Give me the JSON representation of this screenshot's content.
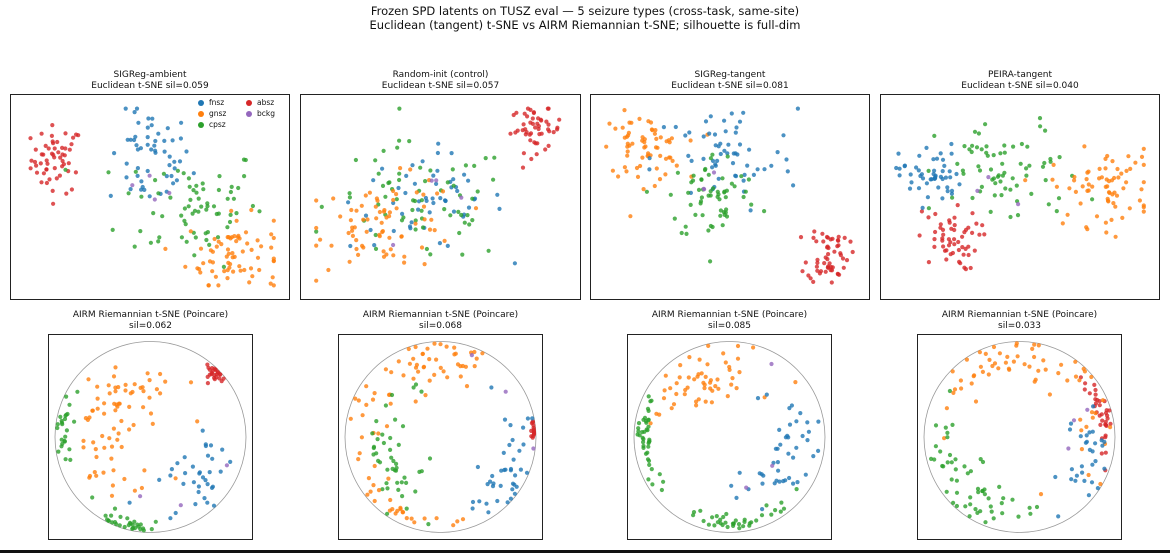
{
  "figure": {
    "suptitle_line1": "Frozen SPD latents on TUSZ eval — 5 seizure types (cross-task, same-site)",
    "suptitle_line2": "Euclidean (tangent) t-SNE vs AIRM Riemannian t-SNE; silhouette is full-dim"
  },
  "colors": {
    "fnsz": "#1f77b4",
    "gnsz": "#ff7f0e",
    "cpsz": "#2ca02c",
    "absz": "#d62728",
    "bckg": "#9467bd"
  },
  "legend": [
    {
      "label": "fnsz",
      "color": "#1f77b4"
    },
    {
      "label": "absz",
      "color": "#d62728"
    },
    {
      "label": "gnsz",
      "color": "#ff7f0e"
    },
    {
      "label": "bckg",
      "color": "#9467bd"
    },
    {
      "label": "cpsz",
      "color": "#2ca02c"
    }
  ],
  "chart_data": [
    {
      "type": "scatter",
      "projection": "Euclidean t-SNE",
      "title": "SIGReg-ambient",
      "subtitle": "Euclidean t-SNE  sil=0.059",
      "silhouette": 0.059,
      "axes": "hidden",
      "legend_position": "upper-right",
      "clusters": [
        {
          "label": "absz",
          "cx": 0.14,
          "cy": 0.7,
          "sx": 0.05,
          "sy": 0.09,
          "n": 55
        },
        {
          "label": "fnsz",
          "cx": 0.5,
          "cy": 0.7,
          "sx": 0.08,
          "sy": 0.13,
          "n": 55
        },
        {
          "label": "cpsz",
          "cx": 0.66,
          "cy": 0.46,
          "sx": 0.14,
          "sy": 0.16,
          "n": 70
        },
        {
          "label": "gnsz",
          "cx": 0.82,
          "cy": 0.2,
          "sx": 0.09,
          "sy": 0.1,
          "n": 70
        },
        {
          "label": "bckg",
          "cx": 0.55,
          "cy": 0.6,
          "sx": 0.08,
          "sy": 0.08,
          "n": 4
        }
      ]
    },
    {
      "type": "scatter",
      "projection": "Euclidean t-SNE",
      "title": "Random-init (control)",
      "subtitle": "Euclidean t-SNE  sil=0.057",
      "silhouette": 0.057,
      "axes": "hidden",
      "clusters": [
        {
          "label": "absz",
          "cx": 0.87,
          "cy": 0.86,
          "sx": 0.05,
          "sy": 0.06,
          "n": 50
        },
        {
          "label": "fnsz",
          "cx": 0.45,
          "cy": 0.48,
          "sx": 0.15,
          "sy": 0.13,
          "n": 55
        },
        {
          "label": "cpsz",
          "cx": 0.42,
          "cy": 0.46,
          "sx": 0.18,
          "sy": 0.16,
          "n": 65
        },
        {
          "label": "gnsz",
          "cx": 0.3,
          "cy": 0.36,
          "sx": 0.14,
          "sy": 0.12,
          "n": 75
        },
        {
          "label": "bckg",
          "cx": 0.45,
          "cy": 0.45,
          "sx": 0.1,
          "sy": 0.1,
          "n": 4
        }
      ]
    },
    {
      "type": "scatter",
      "projection": "Euclidean t-SNE",
      "title": "SIGReg-tangent",
      "subtitle": "Euclidean t-SNE  sil=0.081",
      "silhouette": 0.081,
      "axes": "hidden",
      "clusters": [
        {
          "label": "gnsz",
          "cx": 0.16,
          "cy": 0.76,
          "sx": 0.08,
          "sy": 0.09,
          "n": 65
        },
        {
          "label": "fnsz",
          "cx": 0.48,
          "cy": 0.7,
          "sx": 0.14,
          "sy": 0.15,
          "n": 60
        },
        {
          "label": "cpsz",
          "cx": 0.44,
          "cy": 0.5,
          "sx": 0.09,
          "sy": 0.12,
          "n": 60
        },
        {
          "label": "absz",
          "cx": 0.88,
          "cy": 0.2,
          "sx": 0.04,
          "sy": 0.08,
          "n": 55
        },
        {
          "label": "bckg",
          "cx": 0.45,
          "cy": 0.55,
          "sx": 0.08,
          "sy": 0.08,
          "n": 3
        }
      ]
    },
    {
      "type": "scatter",
      "projection": "Euclidean t-SNE",
      "title": "PEIRA-tangent",
      "subtitle": "Euclidean t-SNE  sil=0.040",
      "silhouette": 0.04,
      "axes": "hidden",
      "clusters": [
        {
          "label": "absz",
          "cx": 0.22,
          "cy": 0.27,
          "sx": 0.06,
          "sy": 0.08,
          "n": 55
        },
        {
          "label": "fnsz",
          "cx": 0.15,
          "cy": 0.62,
          "sx": 0.06,
          "sy": 0.08,
          "n": 50
        },
        {
          "label": "cpsz",
          "cx": 0.46,
          "cy": 0.62,
          "sx": 0.14,
          "sy": 0.14,
          "n": 70
        },
        {
          "label": "gnsz",
          "cx": 0.82,
          "cy": 0.55,
          "sx": 0.1,
          "sy": 0.1,
          "n": 70
        },
        {
          "label": "bckg",
          "cx": 0.4,
          "cy": 0.55,
          "sx": 0.1,
          "sy": 0.1,
          "n": 3
        }
      ]
    },
    {
      "type": "scatter",
      "projection": "AIRM Riemannian t-SNE (Poincare disk)",
      "title": "AIRM Riemannian t-SNE (Poincare)",
      "subtitle": "sil=0.062",
      "silhouette": 0.062,
      "axes": "hidden",
      "boundary_circle": true,
      "clusters": [
        {
          "label": "absz",
          "angle": 45,
          "r": 0.95,
          "spread": 4,
          "n": 25
        },
        {
          "label": "cpsz",
          "angle": 175,
          "r": 0.92,
          "spread": 12,
          "n": 25
        },
        {
          "label": "cpsz",
          "angle": 260,
          "r": 0.95,
          "spread": 12,
          "n": 30
        },
        {
          "label": "fnsz",
          "angle": 320,
          "r": 0.7,
          "spread": 18,
          "n": 35
        },
        {
          "label": "gnsz",
          "angle": 150,
          "r": 0.55,
          "spread": 55,
          "n": 75
        },
        {
          "label": "bckg",
          "angle": 300,
          "r": 0.8,
          "spread": 20,
          "n": 3
        }
      ]
    },
    {
      "type": "scatter",
      "projection": "AIRM Riemannian t-SNE (Poincare disk)",
      "title": "AIRM Riemannian t-SNE (Poincare)",
      "subtitle": "sil=0.068",
      "silhouette": 0.068,
      "axes": "hidden",
      "boundary_circle": true,
      "clusters": [
        {
          "label": "absz",
          "angle": 5,
          "r": 0.98,
          "spread": 3,
          "n": 15
        },
        {
          "label": "gnsz",
          "angle": 110,
          "r": 0.8,
          "spread": 40,
          "n": 60
        },
        {
          "label": "cpsz",
          "angle": 205,
          "r": 0.6,
          "spread": 35,
          "n": 45
        },
        {
          "label": "fnsz",
          "angle": 330,
          "r": 0.8,
          "spread": 25,
          "n": 40
        },
        {
          "label": "gnsz",
          "angle": 240,
          "r": 0.9,
          "spread": 20,
          "n": 25
        },
        {
          "label": "bckg",
          "angle": 30,
          "r": 0.7,
          "spread": 25,
          "n": 3
        }
      ]
    },
    {
      "type": "scatter",
      "projection": "AIRM Riemannian t-SNE (Poincare disk)",
      "title": "AIRM Riemannian t-SNE (Poincare)",
      "subtitle": "sil=0.085",
      "silhouette": 0.085,
      "axes": "hidden",
      "boundary_circle": true,
      "clusters": [
        {
          "label": "gnsz",
          "angle": 115,
          "r": 0.72,
          "spread": 25,
          "n": 55
        },
        {
          "label": "cpsz",
          "angle": 180,
          "r": 0.9,
          "spread": 15,
          "n": 40
        },
        {
          "label": "cpsz",
          "angle": 265,
          "r": 0.9,
          "spread": 20,
          "n": 40
        },
        {
          "label": "fnsz",
          "angle": 330,
          "r": 0.65,
          "spread": 30,
          "n": 45
        },
        {
          "label": "bckg",
          "angle": 0,
          "r": 0.6,
          "spread": 30,
          "n": 3
        }
      ]
    },
    {
      "type": "scatter",
      "projection": "AIRM Riemannian t-SNE (Poincare disk)",
      "title": "AIRM Riemannian t-SNE (Poincare)",
      "subtitle": "sil=0.033",
      "silhouette": 0.033,
      "axes": "hidden",
      "boundary_circle": true,
      "clusters": [
        {
          "label": "absz",
          "angle": 15,
          "r": 0.9,
          "spread": 14,
          "n": 35
        },
        {
          "label": "gnsz",
          "angle": 80,
          "r": 0.85,
          "spread": 45,
          "n": 65
        },
        {
          "label": "cpsz",
          "angle": 225,
          "r": 0.8,
          "spread": 30,
          "n": 55
        },
        {
          "label": "fnsz",
          "angle": 340,
          "r": 0.8,
          "spread": 25,
          "n": 30
        },
        {
          "label": "bckg",
          "angle": 20,
          "r": 0.7,
          "spread": 30,
          "n": 3
        }
      ]
    }
  ]
}
